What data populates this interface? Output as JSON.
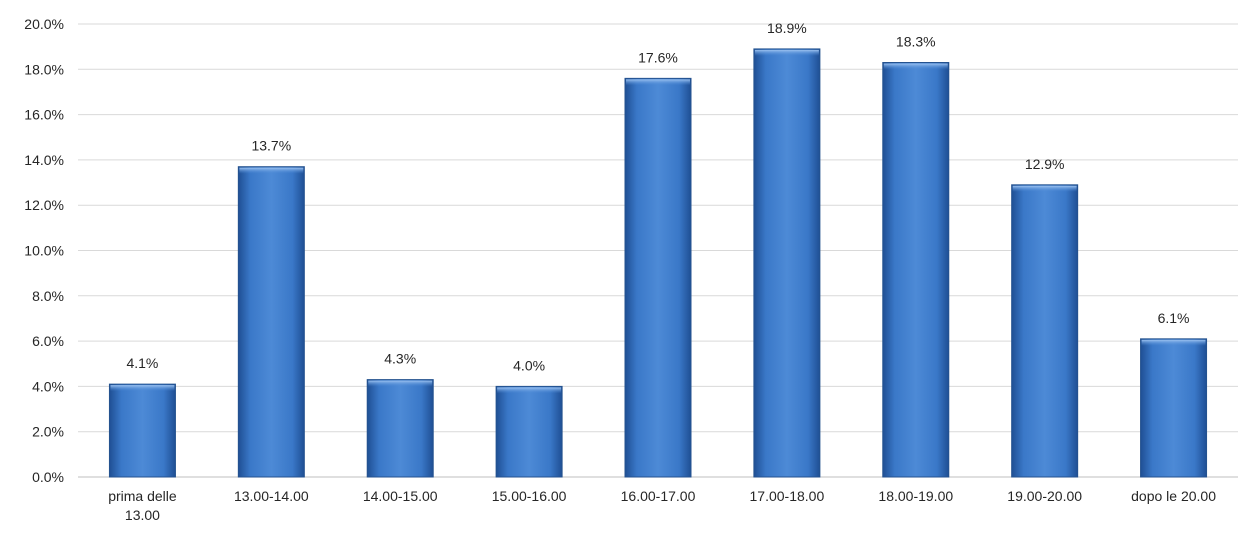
{
  "chart_data": {
    "type": "bar",
    "title": "",
    "xlabel": "",
    "ylabel": "",
    "categories": [
      [
        "prima delle",
        "13.00"
      ],
      [
        "13.00-14.00"
      ],
      [
        "14.00-15.00"
      ],
      [
        "15.00-16.00"
      ],
      [
        "16.00-17.00"
      ],
      [
        "17.00-18.00"
      ],
      [
        "18.00-19.00"
      ],
      [
        "19.00-20.00"
      ],
      [
        "dopo le 20.00"
      ]
    ],
    "values": [
      4.1,
      13.7,
      4.3,
      4.0,
      17.6,
      18.9,
      18.3,
      12.9,
      6.1
    ],
    "data_labels": [
      "4.1%",
      "13.7%",
      "4.3%",
      "4.0%",
      "17.6%",
      "18.9%",
      "18.3%",
      "12.9%",
      "6.1%"
    ],
    "ylim": [
      0,
      20
    ],
    "y_ticks": [
      "0.0%",
      "2.0%",
      "4.0%",
      "6.0%",
      "8.0%",
      "10.0%",
      "12.0%",
      "14.0%",
      "16.0%",
      "18.0%",
      "20.0%"
    ],
    "grid": true,
    "legend": "none",
    "bar_color": "#3a78c8"
  }
}
